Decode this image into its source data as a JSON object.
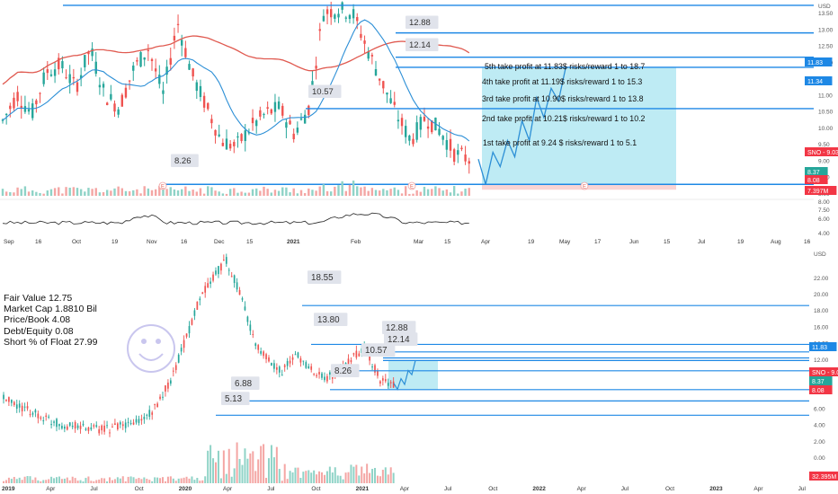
{
  "colors": {
    "up": "#26a69a",
    "down": "#ef5350",
    "level_line": "#1e88e5",
    "ma_red": "#e05a50",
    "ma_blue": "#2c8fd6",
    "target_box": "#b7e9f3",
    "price_label_red": "#f23645",
    "smiley": "#c9c6ee",
    "zone_label_bg": "#e0e3eb"
  },
  "top_chart": {
    "type": "candlestick",
    "price_axis_ticks": [
      "USD",
      "13.50",
      "13.00",
      "12.50",
      "12.00",
      "11.50",
      "11.00",
      "10.50",
      "10.00",
      "9.50",
      "9.00",
      "8.50",
      "8.00",
      "7.50"
    ],
    "osc_axis_ticks": [
      "8.00",
      "6.00",
      "4.00"
    ],
    "time_ticks": [
      "Sep",
      "16",
      "Oct",
      "19",
      "Nov",
      "16",
      "Dec",
      "15",
      "2021",
      "Feb",
      "Mar",
      "15",
      "Apr",
      "19",
      "May",
      "17",
      "Jun",
      "15",
      "Jul",
      "19",
      "Aug",
      "16"
    ],
    "bold_time_ticks": [
      "2021"
    ],
    "price_tags": [
      {
        "text": "11.83",
        "color": "#1e88e5"
      },
      {
        "text": "11.34",
        "color": "#1e88e5"
      },
      {
        "text": "SNO - 9.03",
        "color": "#f23645"
      },
      {
        "text": "8.37",
        "color": "#26a69a"
      },
      {
        "text": "8.08",
        "color": "#f23645"
      },
      {
        "text": "7.397M",
        "color": "#f23645"
      }
    ],
    "horizontal_levels": [
      13.72,
      12.88,
      12.14,
      11.83,
      10.57,
      8.26
    ],
    "level_labels": [
      "12.88",
      "12.14",
      "10.57",
      "8.26"
    ],
    "target_zone": {
      "low": 8.26,
      "high": 11.83
    },
    "take_profit_notes": [
      "5th take profit at 11.83$ risks/reward 1 to 18.7",
      "4th take profit at 11.19$ risks/reward 1 to  15.3",
      "3rd take profit at 10.90$ risks/reward 1 to 13.8",
      "2nd take profit at 10.21$ risks/reward 1 to 10.2",
      "1st take profit at 9.24 $ risks/reward 1 to 5.1"
    ],
    "event_markers": [
      "E",
      "E",
      "E"
    ],
    "projection_path": [
      9.03,
      8.26,
      9.24,
      8.8,
      9.6,
      9.1,
      10.2,
      9.6,
      10.9,
      10.3,
      11.19,
      10.8,
      11.83
    ]
  },
  "bottom_chart": {
    "type": "candlestick",
    "price_axis_ticks": [
      "USD",
      "22.00",
      "20.00",
      "18.00",
      "16.00",
      "14.00",
      "12.00",
      "10.00",
      "8.00",
      "6.00",
      "4.00",
      "2.00",
      "0.00"
    ],
    "time_ticks": [
      "2019",
      "Apr",
      "Jul",
      "Oct",
      "2020",
      "Apr",
      "Jul",
      "Oct",
      "2021",
      "Apr",
      "Jul",
      "Oct",
      "2022",
      "Apr",
      "Jul",
      "Oct",
      "2023",
      "Apr",
      "Jul"
    ],
    "bold_time_ticks": [
      "2019",
      "2020",
      "2021",
      "2022",
      "2023"
    ],
    "price_tags": [
      {
        "text": "11.83",
        "color": "#1e88e5"
      },
      {
        "text": "SNO - 9.03",
        "color": "#f23645"
      },
      {
        "text": "8.37",
        "color": "#26a69a"
      },
      {
        "text": "8.08",
        "color": "#f23645"
      },
      {
        "text": "32.395M",
        "color": "#f23645"
      }
    ],
    "horizontal_levels": [
      18.55,
      13.8,
      12.88,
      12.14,
      11.83,
      10.57,
      8.26,
      6.88,
      5.13
    ],
    "level_labels": [
      "18.55",
      "13.80",
      "12.88",
      "12.14",
      "10.57",
      "8.26",
      "6.88",
      "5.13"
    ]
  },
  "fundamentals": [
    "Fair Value 12.75",
    "Market Cap 1.8810 Bil",
    "Price/Book 4.08",
    "Debt/Equity 0.08",
    "Short % of Float 27.99"
  ]
}
